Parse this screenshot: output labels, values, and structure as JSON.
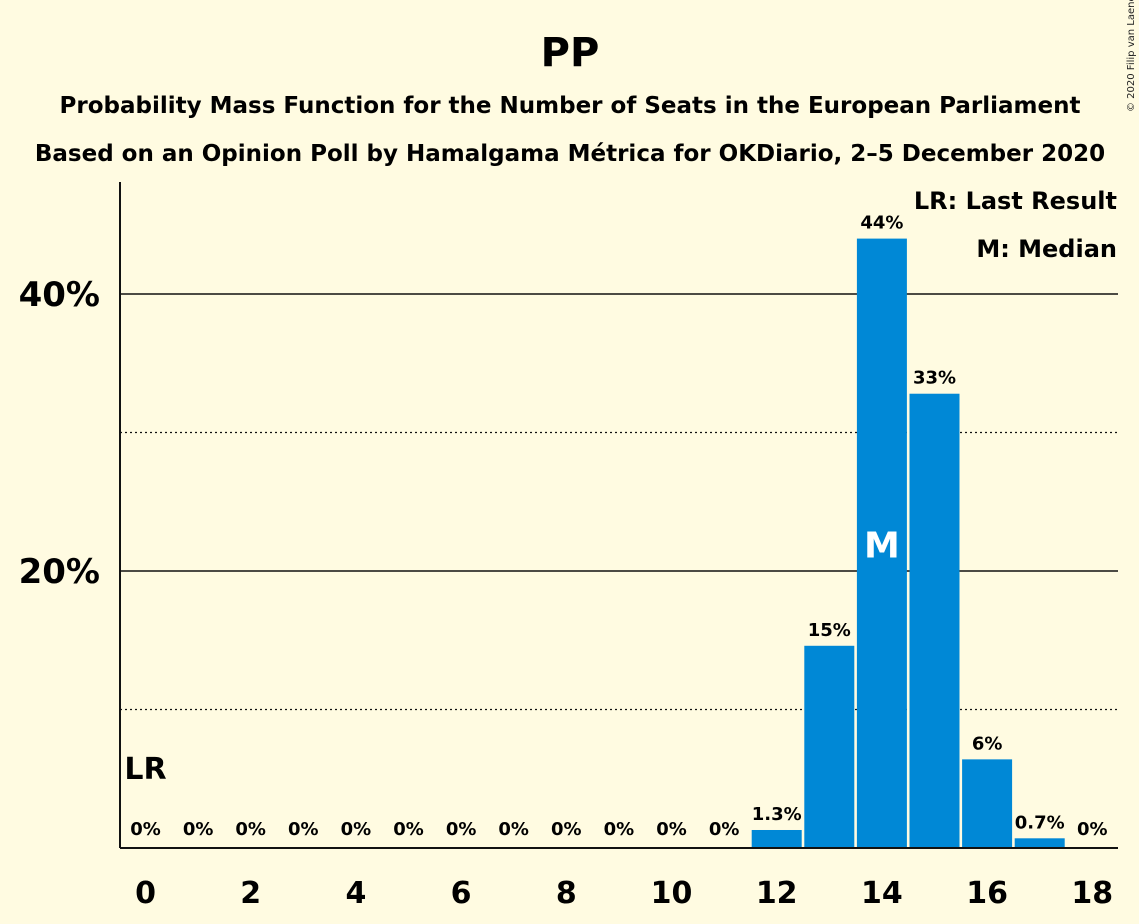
{
  "chart_data": {
    "type": "bar",
    "title": "PP",
    "subtitle": "Probability Mass Function for the Number of Seats in the European Parliament",
    "subtitle2": "Based on an Opinion Poll by Hamalgama Métrica for OKDiario, 2–5 December 2020",
    "copyright": "© 2020 Filip van Laenen",
    "categories": [
      0,
      1,
      2,
      3,
      4,
      5,
      6,
      7,
      8,
      9,
      10,
      11,
      12,
      13,
      14,
      15,
      16,
      17,
      18
    ],
    "values": [
      0,
      0,
      0,
      0,
      0,
      0,
      0,
      0,
      0,
      0,
      0,
      0,
      1.3,
      14.6,
      44.0,
      32.8,
      6.4,
      0.7,
      0
    ],
    "labels": [
      "0%",
      "0%",
      "0%",
      "0%",
      "0%",
      "0%",
      "0%",
      "0%",
      "0%",
      "0%",
      "0%",
      "0%",
      "1.3%",
      "15%",
      "44%",
      "33%",
      "6%",
      "0.7%",
      "0%"
    ],
    "xticks": [
      0,
      2,
      4,
      6,
      8,
      10,
      12,
      14,
      16,
      18
    ],
    "ylim": [
      0,
      48
    ],
    "yticks_major": [
      20,
      40
    ],
    "ytick_labels": [
      "20%",
      "40%"
    ],
    "yticks_minor": [
      10,
      30
    ],
    "bar_color": "#0088d6",
    "background": "#fffbe1",
    "last_result_seat": 0,
    "last_result_mark": "LR",
    "median_seat": 14,
    "median_mark": "M",
    "legend": [
      "LR: Last Result",
      "M: Median"
    ],
    "legend_position": "top-right"
  }
}
